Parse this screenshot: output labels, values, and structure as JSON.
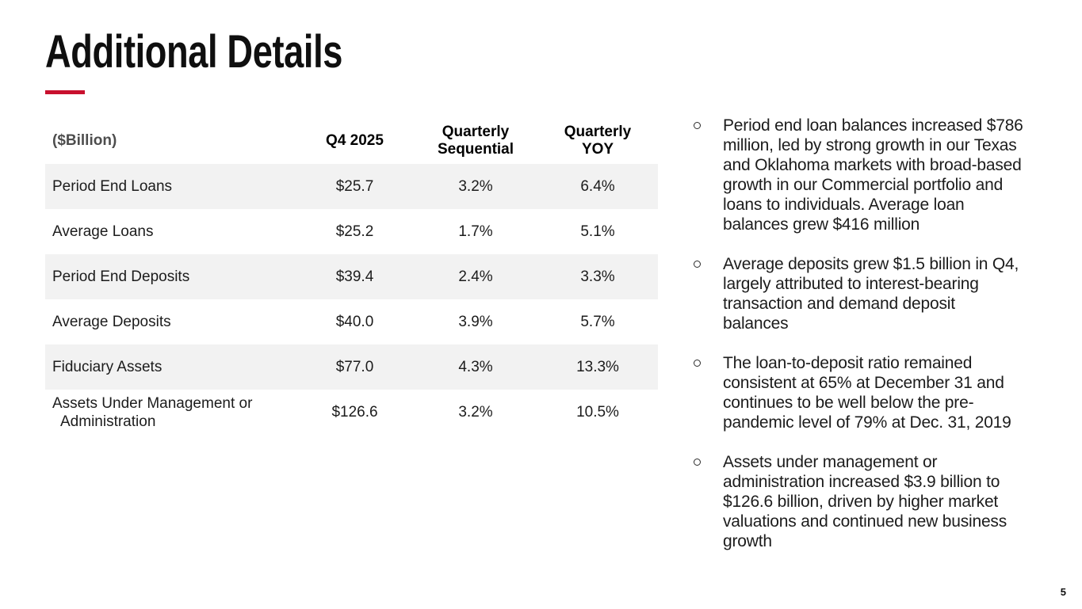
{
  "title": "Additional Details",
  "page_number": "5",
  "colors": {
    "accent_red": "#C8102E",
    "row_stripe": "#F2F2F2"
  },
  "table": {
    "unit_label": "($Billion)",
    "columns": [
      "Q4 2025",
      "Quarterly\nSequential",
      "Quarterly\nYOY"
    ],
    "rows": [
      {
        "label": "Period End Loans",
        "q4": "$25.7",
        "seq": "3.2%",
        "yoy": "6.4%"
      },
      {
        "label": "Average Loans",
        "q4": "$25.2",
        "seq": "1.7%",
        "yoy": "5.1%"
      },
      {
        "label": "Period End Deposits",
        "q4": "$39.4",
        "seq": "2.4%",
        "yoy": "3.3%"
      },
      {
        "label": "Average Deposits",
        "q4": "$40.0",
        "seq": "3.9%",
        "yoy": "5.7%"
      },
      {
        "label": "Fiduciary Assets",
        "q4": "$77.0",
        "seq": "4.3%",
        "yoy": "13.3%"
      },
      {
        "label": "Assets Under Management or Administration",
        "q4": "$126.6",
        "seq": "3.2%",
        "yoy": "10.5%"
      }
    ]
  },
  "bullets": [
    "Period end loan balances increased $786\nmillion, led by strong growth in our Texas\nand Oklahoma markets with broad-based\ngrowth in our Commercial portfolio and\nloans to individuals. Average loan\nbalances grew $416 million",
    "Average deposits grew $1.5 billion in Q4,\nlargely attributed to interest-bearing\ntransaction and demand deposit\nbalances",
    "The loan-to-deposit ratio remained\nconsistent at 65% at December 31 and\ncontinues to be well below the pre-\npandemic level of 79% at Dec. 31, 2019",
    "Assets under management or\nadministration increased $3.9 billion to\n$126.6 billion, driven by higher market\nvaluations and continued new business\ngrowth"
  ]
}
